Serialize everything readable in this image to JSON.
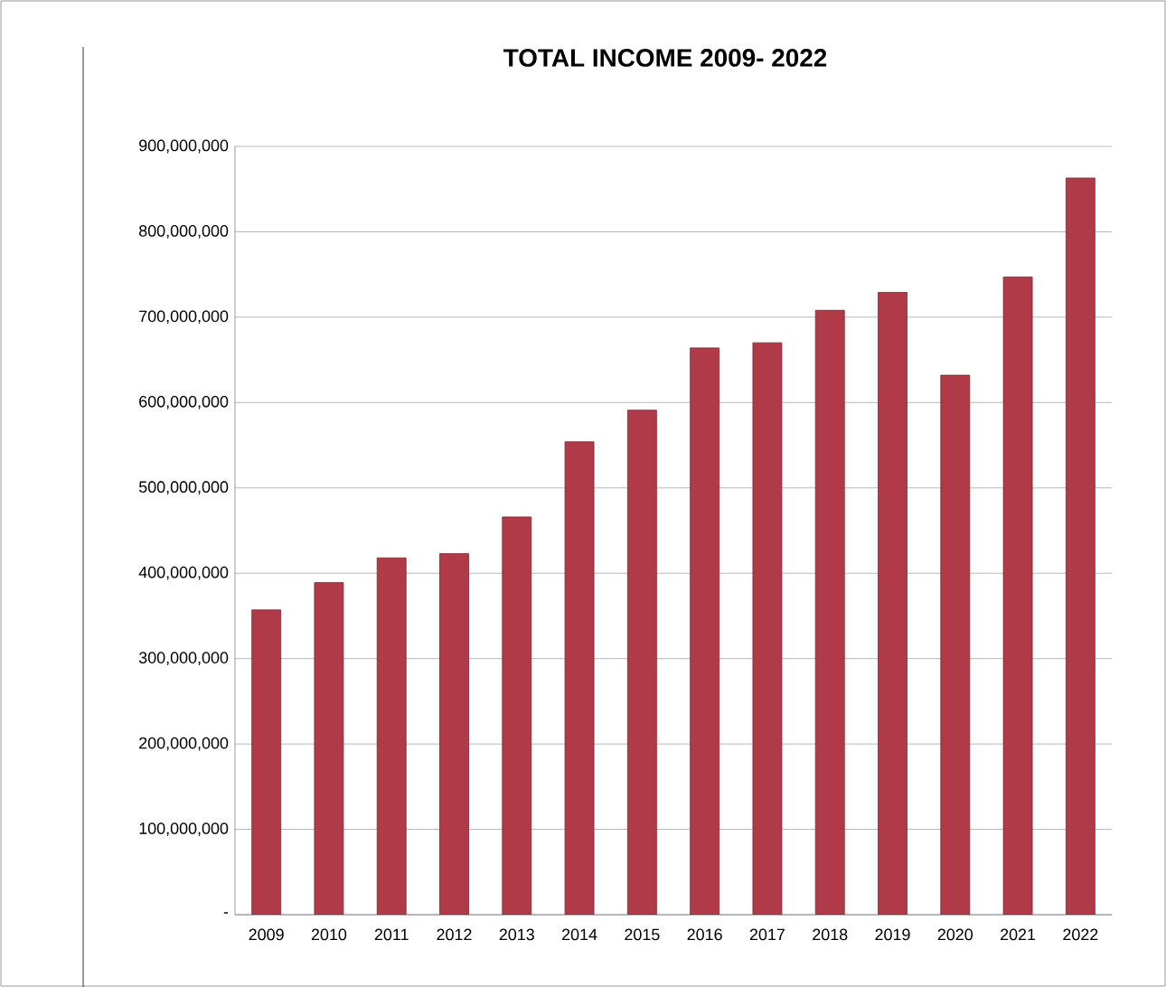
{
  "chart_data": {
    "type": "bar",
    "title": "TOTAL INCOME 2009- 2022",
    "categories": [
      "2009",
      "2010",
      "2011",
      "2012",
      "2013",
      "2014",
      "2015",
      "2016",
      "2017",
      "2018",
      "2019",
      "2020",
      "2021",
      "2022"
    ],
    "values": [
      357000000,
      389000000,
      418000000,
      423000000,
      466000000,
      554000000,
      591000000,
      664000000,
      670000000,
      708000000,
      729000000,
      632000000,
      747000000,
      863000000
    ],
    "color": "#b03a48",
    "ylim": [
      0,
      900000000
    ],
    "yticks": [
      {
        "value": 0,
        "label": "-"
      },
      {
        "value": 100000000,
        "label": "100,000,000"
      },
      {
        "value": 200000000,
        "label": "200,000,000"
      },
      {
        "value": 300000000,
        "label": "300,000,000"
      },
      {
        "value": 400000000,
        "label": "400,000,000"
      },
      {
        "value": 500000000,
        "label": "500,000,000"
      },
      {
        "value": 600000000,
        "label": "600,000,000"
      },
      {
        "value": 700000000,
        "label": "700,000,000"
      },
      {
        "value": 800000000,
        "label": "800,000,000"
      },
      {
        "value": 900000000,
        "label": "900,000,000"
      }
    ],
    "grid": true
  }
}
